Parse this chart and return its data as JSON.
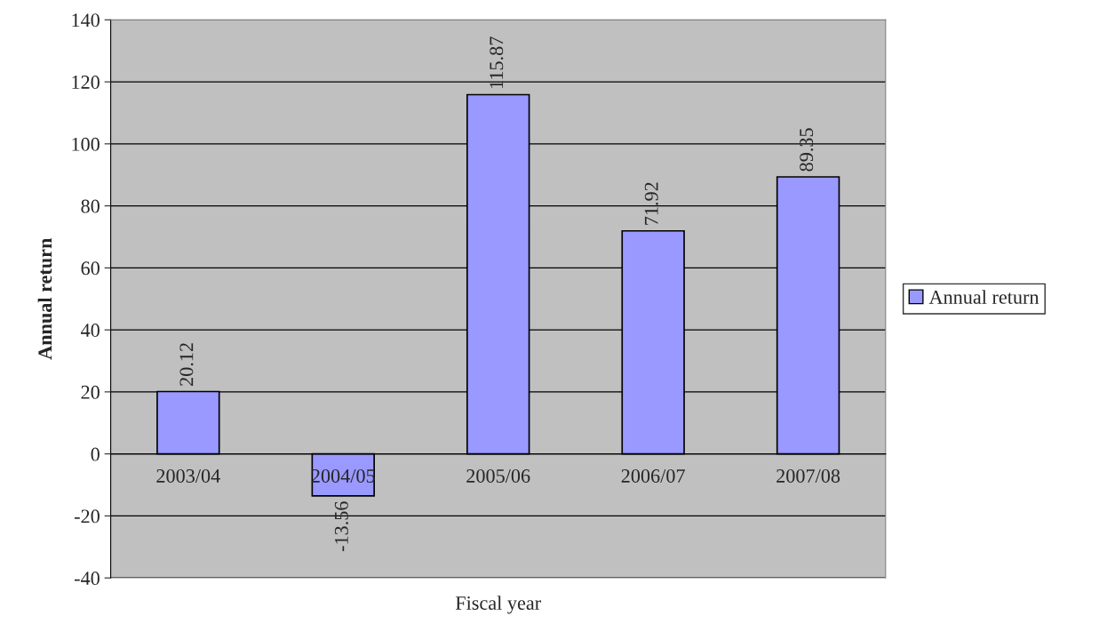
{
  "chart_data": {
    "type": "bar",
    "xlabel": "Fiscal year",
    "ylabel": "Annual return",
    "categories": [
      "2003/04",
      "2004/05",
      "2005/06",
      "2006/07",
      "2007/08"
    ],
    "series": [
      {
        "name": "Annual return",
        "color": "#9999ff",
        "values": [
          20.12,
          -13.56,
          115.87,
          71.92,
          89.35
        ]
      }
    ],
    "data_labels": true,
    "ylim": [
      -40,
      140
    ],
    "yticks": [
      -40,
      -20,
      0,
      20,
      40,
      60,
      80,
      100,
      120,
      140
    ],
    "grid": "y",
    "legend": "right"
  }
}
